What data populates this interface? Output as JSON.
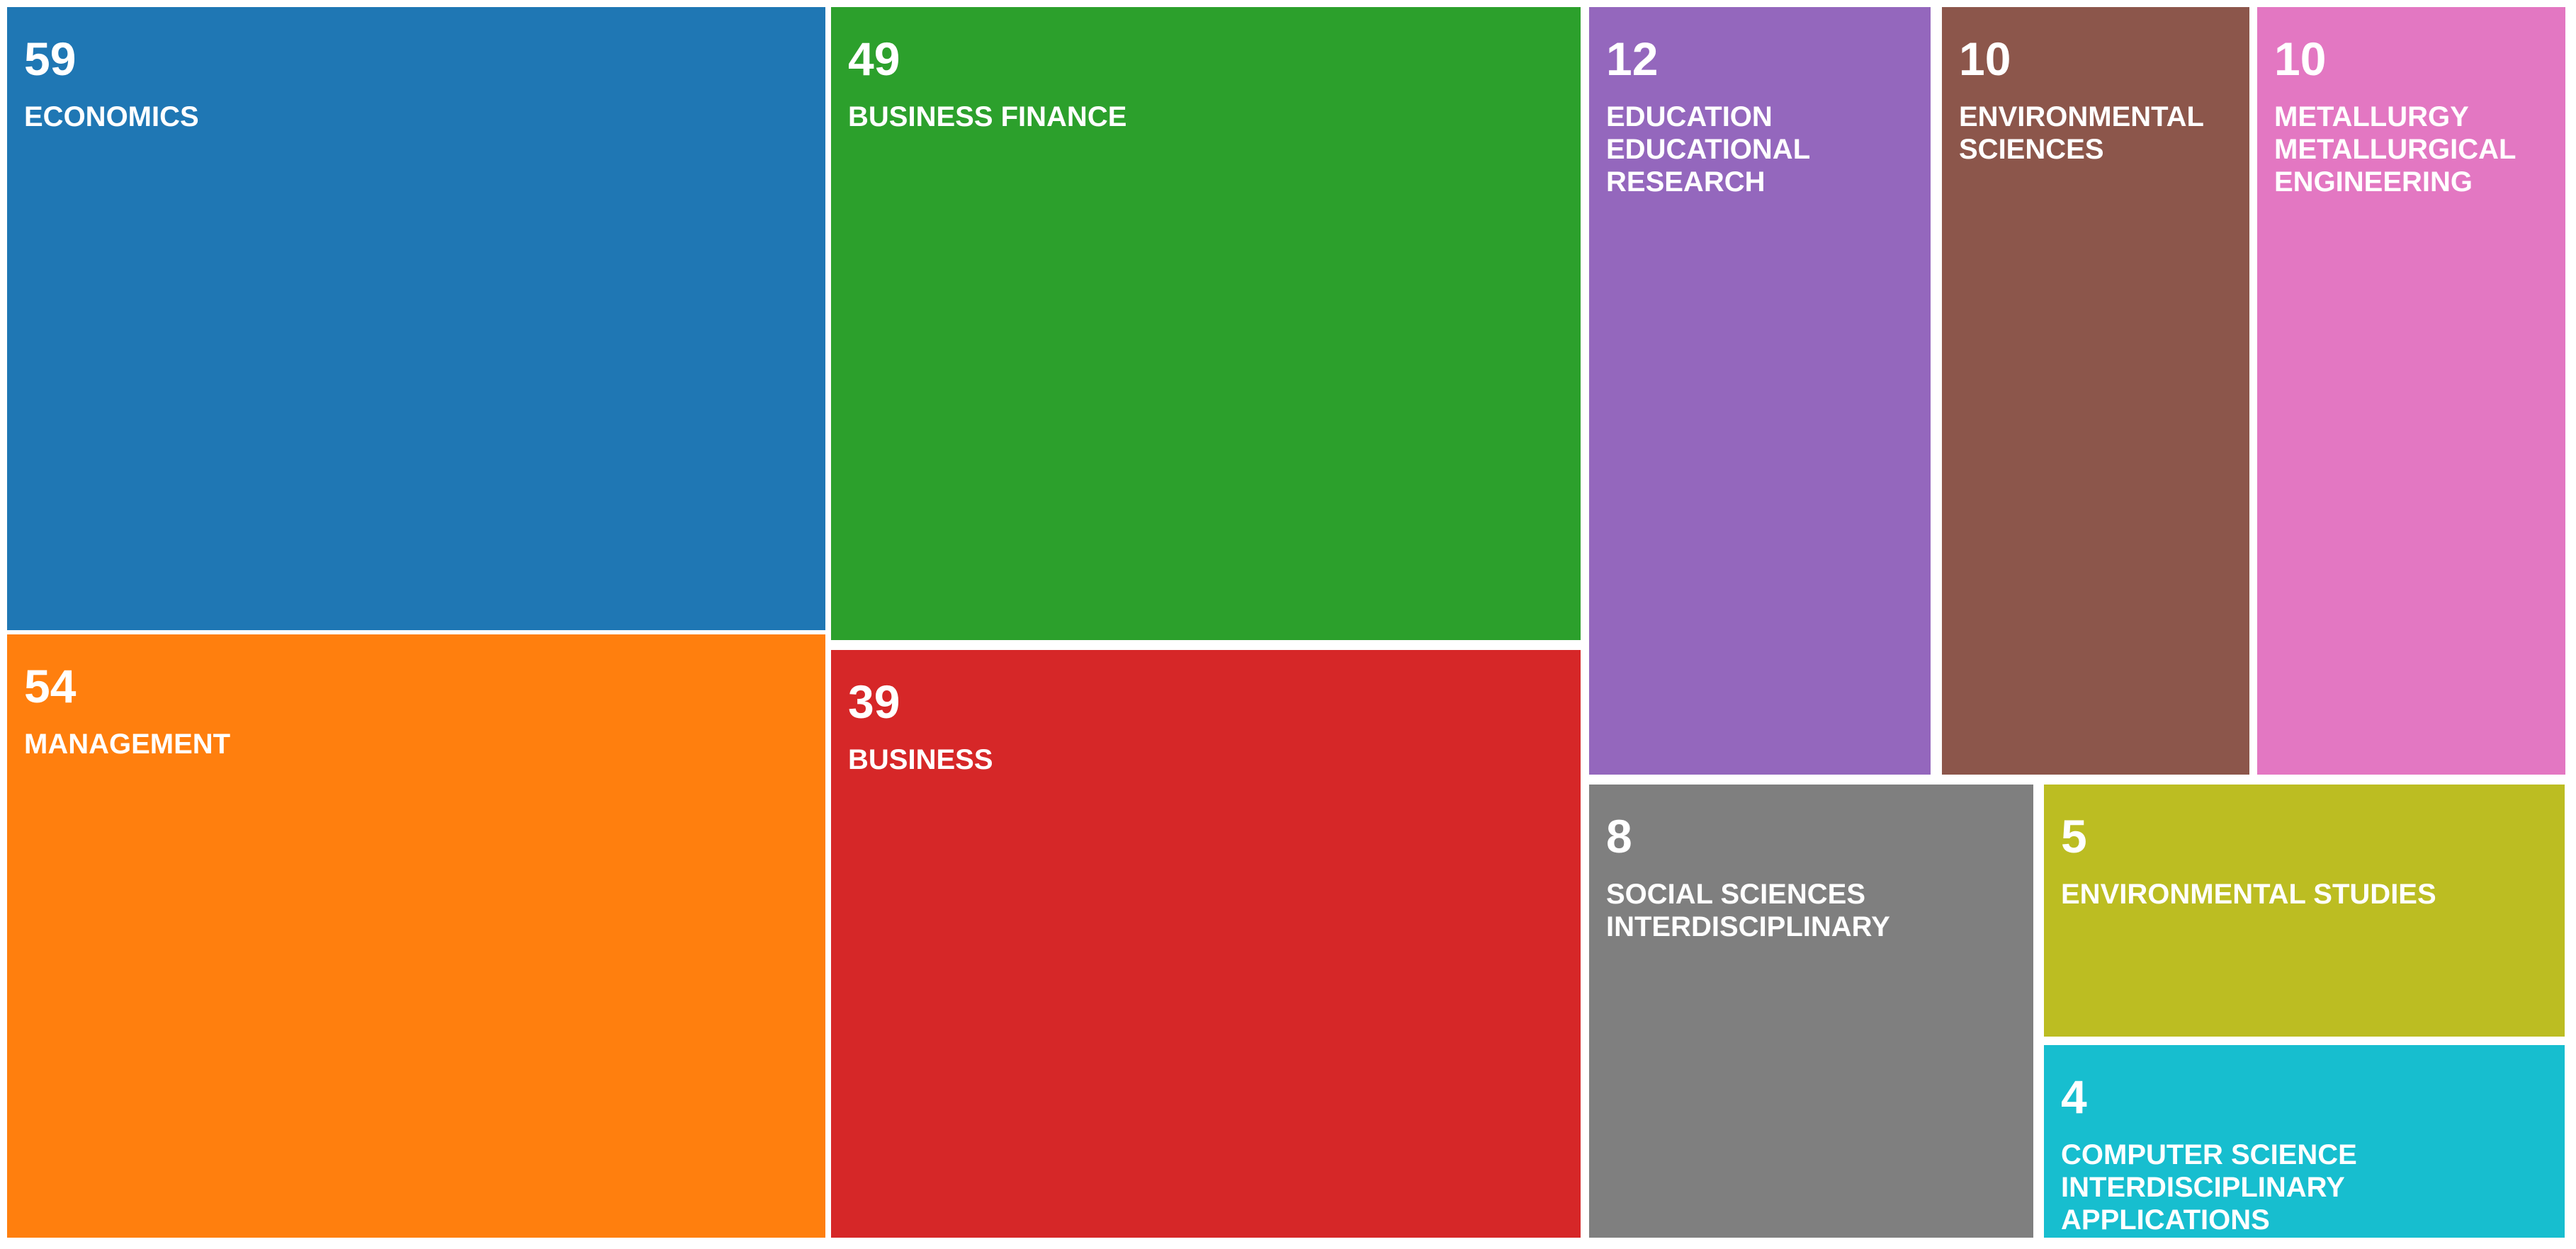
{
  "chart_data": {
    "type": "treemap",
    "title": "",
    "items": [
      {
        "label": "ECONOMICS",
        "value": 59,
        "color": "#1f77b4"
      },
      {
        "label": "MANAGEMENT",
        "value": 54,
        "color": "#ff7f0e"
      },
      {
        "label": "BUSINESS FINANCE",
        "value": 49,
        "color": "#2ca02c"
      },
      {
        "label": "BUSINESS",
        "value": 39,
        "color": "#d62728"
      },
      {
        "label": "EDUCATION EDUCATIONAL RESEARCH",
        "value": 12,
        "color": "#9467bd"
      },
      {
        "label": "ENVIRONMENTAL SCIENCES",
        "value": 10,
        "color": "#8c564b"
      },
      {
        "label": "METALLURGY METALLURGICAL ENGINEERING",
        "value": 10,
        "color": "#e377c2"
      },
      {
        "label": "SOCIAL SCIENCES INTERDISCIPLINARY",
        "value": 8,
        "color": "#7f7f7f"
      },
      {
        "label": "ENVIRONMENTAL STUDIES",
        "value": 5,
        "color": "#bcbd22"
      },
      {
        "label": "COMPUTER SCIENCE INTERDISCIPLINARY APPLICATIONS",
        "value": 4,
        "color": "#17becf"
      }
    ]
  }
}
